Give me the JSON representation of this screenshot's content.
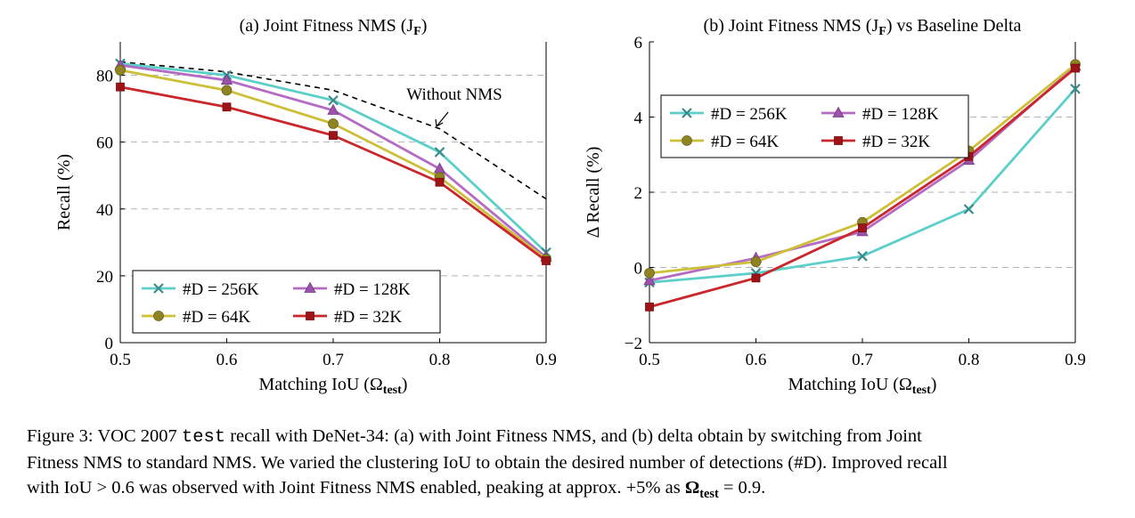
{
  "chart_data": [
    {
      "type": "line",
      "title": "(a) Joint Fitness NMS (J",
      "title_sub": "F",
      "title_close": ")",
      "xlabel": "Matching IoU (Ω",
      "xlabel_sub": "test",
      "xlabel_close": ")",
      "ylabel": "Recall (%)",
      "x": [
        0.5,
        0.6,
        0.7,
        0.8,
        0.9
      ],
      "xlim": [
        0.5,
        0.9
      ],
      "ylim": [
        0,
        90
      ],
      "xticks": [
        "0.5",
        "0.6",
        "0.7",
        "0.8",
        "0.9"
      ],
      "yticks": [
        0,
        20,
        40,
        60,
        80
      ],
      "ytick_labels": [
        "0",
        "20",
        "40",
        "60",
        "80"
      ],
      "grid": "horizontal-dashed",
      "legend_position": "bottom-left",
      "series": [
        {
          "name": "#D = 256K",
          "color": "#5ccfc9",
          "marker": "x",
          "values": [
            83.5,
            80,
            72.5,
            57,
            27
          ]
        },
        {
          "name": "#D = 128K",
          "color": "#b56bc4",
          "marker": "triangle",
          "values": [
            83,
            78.5,
            69.5,
            52,
            25.5
          ]
        },
        {
          "name": "#D = 64K",
          "color": "#cdc038",
          "marker": "circle",
          "values": [
            81.5,
            75.5,
            65.5,
            49.5,
            25
          ]
        },
        {
          "name": "#D = 32K",
          "color": "#c9272b",
          "marker": "square",
          "values": [
            76.5,
            70.5,
            62,
            48,
            24.5
          ]
        }
      ],
      "reference": {
        "values": [
          84,
          81,
          75.5,
          64,
          43
        ],
        "color": "#000000",
        "style": "dashed"
      },
      "annotations": [
        {
          "text": "Without NMS",
          "x": 0.8,
          "y": 64
        }
      ]
    },
    {
      "type": "line",
      "title": "(b) Joint Fitness NMS (J",
      "title_sub": "F",
      "title_close": ") vs Baseline Delta",
      "xlabel": "Matching IoU (Ω",
      "xlabel_sub": "test",
      "xlabel_close": ")",
      "ylabel": "Δ Recall (%)",
      "x": [
        0.5,
        0.6,
        0.7,
        0.8,
        0.9
      ],
      "xlim": [
        0.5,
        0.9
      ],
      "ylim": [
        -2,
        6
      ],
      "xticks": [
        "0.5",
        "0.6",
        "0.7",
        "0.8",
        "0.9"
      ],
      "yticks": [
        -2,
        0,
        2,
        4,
        6
      ],
      "ytick_labels": [
        "−2",
        "0",
        "2",
        "4",
        "6"
      ],
      "grid": "horizontal-dashed",
      "legend_position": "top-left",
      "series": [
        {
          "name": "#D = 256K",
          "color": "#5ccfc9",
          "marker": "x",
          "values": [
            -0.4,
            -0.15,
            0.3,
            1.55,
            4.75
          ]
        },
        {
          "name": "#D = 128K",
          "color": "#b56bc4",
          "marker": "triangle",
          "values": [
            -0.35,
            0.25,
            0.95,
            2.85,
            5.35
          ]
        },
        {
          "name": "#D = 64K",
          "color": "#cdc038",
          "marker": "circle",
          "values": [
            -0.15,
            0.15,
            1.2,
            3.1,
            5.4
          ]
        },
        {
          "name": "#D = 32K",
          "color": "#c9272b",
          "marker": "square",
          "values": [
            -1.05,
            -0.28,
            1.05,
            2.95,
            5.3
          ]
        }
      ]
    }
  ],
  "caption": {
    "label": "Figure 3: VOC 2007 ",
    "code": "test",
    "line1_rest": " recall with DeNet-34: (a) with Joint Fitness NMS, and (b) delta obtain by switching from Joint",
    "line2": "Fitness NMS to standard NMS. We varied the clustering IoU to obtain the desired number of detections (#D). Improved recall",
    "line3_a": "with IoU > 0.6 was observed with Joint Fitness NMS enabled, peaking at approx. +5% as ",
    "line3_sym": "Ω",
    "line3_sub": "test",
    "line3_b": " = 0.9."
  }
}
